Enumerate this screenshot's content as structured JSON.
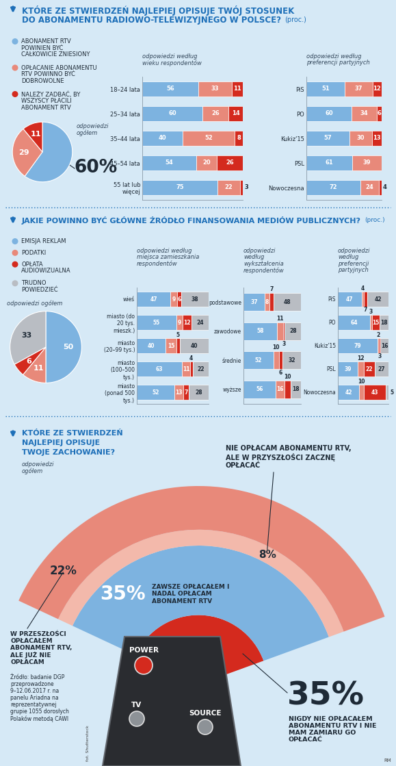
{
  "chart_data": [
    {
      "type": "pie",
      "title": "KTÓRE ZE STWIERDZEŃ NAJLEPIEJ OPISUJE TWÓJ STOSUNEK DO ABONAMENTU RADIOWO-TELEWIZYJNEGO W POLSCE?",
      "subtitle": "(proc.)",
      "label": "odpowiedzi ogółem",
      "categories": [
        "ABONAMENT RTV POWINIEN BYĆ CAŁKOWICIE ZNIESIONY",
        "OPŁACANIE ABONAMENTU RTV POWINNO BYĆ DOBROWOLNE",
        "NALEŻY ZADBAĆ, BY WSZYSCY PŁACILI ABONAMENT RTV"
      ],
      "values": [
        60,
        29,
        11
      ],
      "value_labels": [
        "60%",
        "29",
        "11"
      ],
      "colors": [
        "#7db3e0",
        "#e8897a",
        "#d42a1e"
      ],
      "legend": "upper left",
      "data_labels": true
    },
    {
      "type": "bar",
      "orientation": "horizontal",
      "stacked": true,
      "data_labels": true,
      "tick_labels": "y",
      "title": "odpowiedzi według wieku respondentów",
      "categories": [
        "18–24 lata",
        "25–34 lata",
        "35–44 lata",
        "45–54 lata",
        "55 lat lub więcej"
      ],
      "xlim": [
        0,
        100
      ],
      "series": [
        {
          "color": "#7db3e0",
          "values": [
            56,
            60,
            40,
            54,
            75
          ]
        },
        {
          "color": "#e8897a",
          "values": [
            33,
            26,
            52,
            20,
            22
          ]
        },
        {
          "color": "#d42a1e",
          "values": [
            11,
            14,
            8,
            26,
            3
          ]
        }
      ]
    },
    {
      "type": "bar",
      "orientation": "horizontal",
      "stacked": true,
      "data_labels": true,
      "tick_labels": "y",
      "title": "odpowiedzi według preferencji partyjnych",
      "categories": [
        "PiS",
        "PO",
        "Kukiz'15",
        "PSL",
        "Nowoczesna"
      ],
      "xlim": [
        0,
        100
      ],
      "series": [
        {
          "color": "#7db3e0",
          "values": [
            51,
            60,
            57,
            61,
            72
          ]
        },
        {
          "color": "#e8897a",
          "values": [
            37,
            34,
            30,
            39,
            24
          ]
        },
        {
          "color": "#d42a1e",
          "values": [
            12,
            6,
            13,
            null,
            4
          ]
        }
      ]
    },
    {
      "type": "pie",
      "title": "JAKIE POWINNO BYĆ GŁÓWNE ŹRÓDŁO FINANSOWANIA MEDIÓW PUBLICZNYCH?",
      "subtitle": "(proc.)",
      "label": "odpowiedzi ogółem",
      "categories": [
        "EMISJA REKLAM",
        "PODATKI",
        "OPŁATA AUDIOWIZUALNA",
        "TRUDNO POWIEDZIEĆ"
      ],
      "values": [
        50,
        11,
        6,
        33
      ],
      "value_labels": [
        "50",
        "11",
        "6",
        "33"
      ],
      "colors": [
        "#7db3e0",
        "#e8897a",
        "#d42a1e",
        "#b9bdc3"
      ],
      "legend": "upper left",
      "data_labels": true
    },
    {
      "type": "bar",
      "orientation": "horizontal",
      "stacked": true,
      "data_labels": true,
      "tick_labels": "y",
      "title": "odpowiedzi według miejsca zamieszkania respondentów",
      "categories": [
        "wieś",
        "miasto (do 20 tys. mieszk.)",
        "miasto (20–99 tys.)",
        "miasto (100–500 tys.)",
        "miasto (ponad 500 tys.)"
      ],
      "xlim": [
        0,
        100
      ],
      "series": [
        {
          "color": "#7db3e0",
          "values": [
            47,
            55,
            40,
            63,
            52
          ]
        },
        {
          "color": "#e8897a",
          "values": [
            9,
            9,
            15,
            11,
            13
          ]
        },
        {
          "color": "#d42a1e",
          "values": [
            6,
            12,
            5,
            4,
            7
          ]
        },
        {
          "color": "#b9bdc3",
          "values": [
            38,
            24,
            40,
            22,
            28
          ]
        }
      ]
    },
    {
      "type": "bar",
      "orientation": "horizontal",
      "stacked": true,
      "data_labels": true,
      "tick_labels": "y",
      "title": "odpowiedzi według wykształcenia respondentów",
      "categories": [
        "podstawowe",
        "zawodowe",
        "średnie",
        "wyższe"
      ],
      "xlim": [
        0,
        100
      ],
      "series": [
        {
          "color": "#7db3e0",
          "values": [
            37,
            58,
            52,
            56
          ]
        },
        {
          "color": "#e8897a",
          "values": [
            8,
            11,
            10,
            16
          ]
        },
        {
          "color": "#d42a1e",
          "values": [
            7,
            3,
            6,
            10
          ]
        },
        {
          "color": "#b9bdc3",
          "values": [
            48,
            28,
            32,
            18
          ]
        }
      ]
    },
    {
      "type": "bar",
      "orientation": "horizontal",
      "stacked": true,
      "data_labels": true,
      "tick_labels": "y",
      "title": "odpowiedzi według preferencji partyjnych",
      "categories": [
        "PiS",
        "PO",
        "Kukiz'15",
        "PSL",
        "Nowoczesna"
      ],
      "xlim": [
        0,
        100
      ],
      "series": [
        {
          "color": "#7db3e0",
          "values": [
            47,
            64,
            79,
            39,
            42
          ]
        },
        {
          "color": "#e8897a",
          "values": [
            4,
            3,
            2,
            12,
            10
          ]
        },
        {
          "color": "#d42a1e",
          "values": [
            7,
            15,
            3,
            22,
            43
          ]
        },
        {
          "color": "#b9bdc3",
          "values": [
            42,
            18,
            16,
            27,
            5
          ]
        }
      ]
    },
    {
      "type": "arc",
      "title": "KTÓRE ZE STWIERDZEŃ NAJLEPIEJ OPISUJE TWOJE ZACHOWANIE?",
      "label": "odpowiedzi ogółem",
      "categories": [
        "NIGDY NIE OPŁACAŁEM ABONAMENTU RTV I NIE MAM ZAMIARU GO OPŁACAĆ",
        "ZAWSZE OPŁACAŁEM I NADAL OPŁACAM ABONAMENT RTV",
        "NIE OPŁACAM ABONAMENTU RTV, ALE W PRZYSZŁOŚCI ZACZNĘ OPŁACAĆ",
        "W PRZESZŁOŚCI OPŁACAŁEM ABONAMENT RTV, ALE JUŻ NIE OPŁACAM"
      ],
      "values": [
        35,
        35,
        8,
        22
      ],
      "value_labels": [
        "35%",
        "35%",
        "8%",
        "22%"
      ],
      "colors": [
        "#d42a1e",
        "#7db3e0",
        "#f3b9ab",
        "#e8897a"
      ],
      "data_labels": true
    }
  ],
  "source": "Źródło: badanie DGP przeprowadzone 9–12.06.2017 r. na panelu Ariadna na reprezentatywnej grupie 1055 dorosłych Polaków metodą CAWI",
  "photo_credit": "fot. Shutterstock",
  "author": "RM",
  "remote_buttons": [
    "POWER",
    "TV",
    "SOURCE"
  ]
}
